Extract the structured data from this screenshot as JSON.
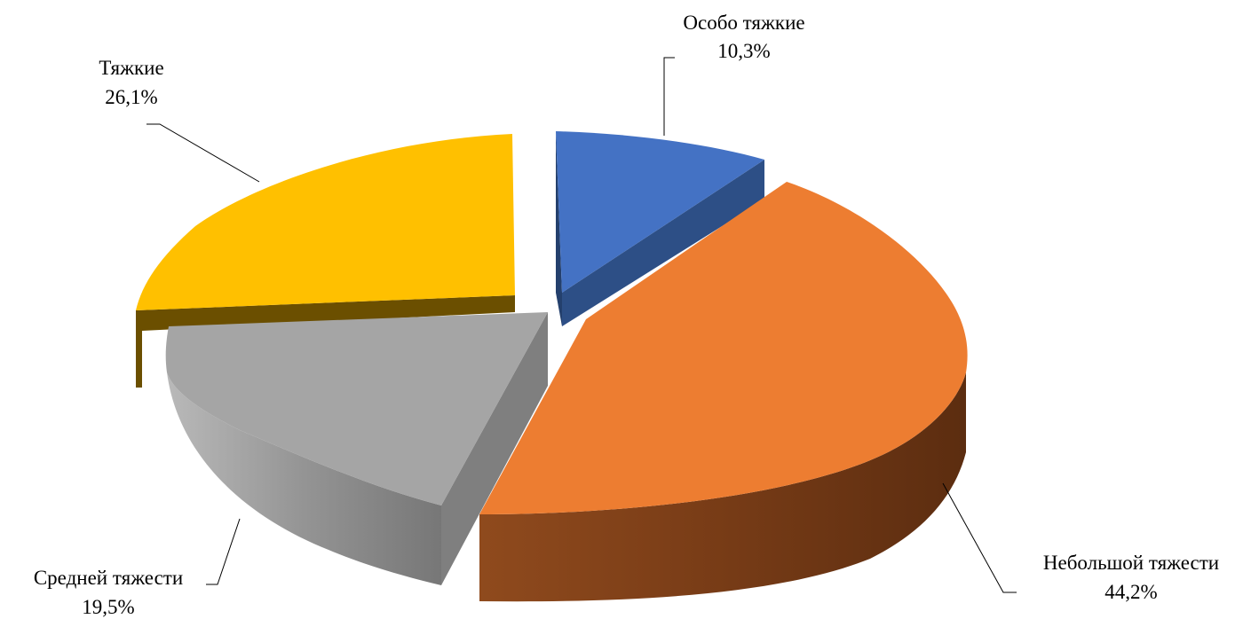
{
  "chart_data": {
    "type": "pie",
    "title": "",
    "slices": [
      {
        "name": "Особо тяжкие",
        "value": 10.3,
        "label": "10,3%",
        "color": "#4472C4"
      },
      {
        "name": "Небольшой тяжести",
        "value": 44.2,
        "label": "44,2%",
        "color": "#ED7D31"
      },
      {
        "name": "Средней тяжести",
        "value": 19.5,
        "label": "19,5%",
        "color": "#A5A5A5"
      },
      {
        "name": "Тяжкие",
        "value": 26.1,
        "label": "26,1%",
        "color": "#FFC000"
      }
    ],
    "exploded": true,
    "view": "3d",
    "legend": "none",
    "data_labels": "outside with leader lines"
  }
}
